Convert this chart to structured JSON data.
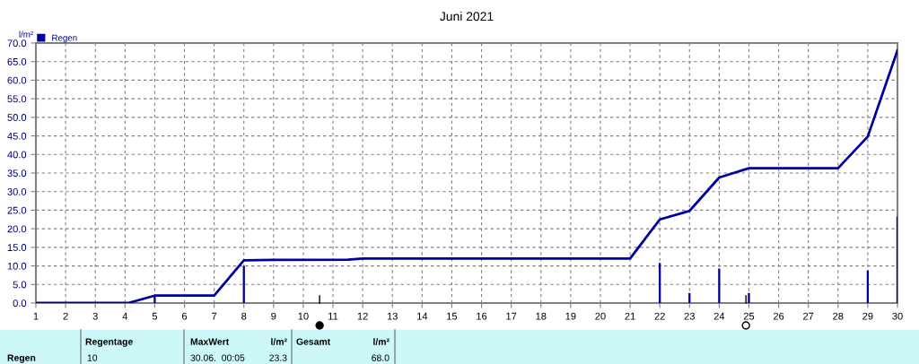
{
  "chart_data": {
    "type": "line",
    "title": "Juni 2021",
    "ylabel": "l/m²",
    "series": [
      {
        "type": "bar",
        "name": "Regen",
        "color": "#0000a0",
        "x": [
          5,
          8,
          22,
          23,
          24,
          25,
          29,
          30
        ],
        "values": [
          1.9,
          10.0,
          10.8,
          2.7,
          9.3,
          2.7,
          8.8,
          23.3
        ]
      },
      {
        "color": "#0000a0",
        "x": [
          1,
          4.1,
          5,
          7,
          8,
          9,
          11.5,
          12,
          21,
          22,
          23,
          24,
          25,
          28,
          29,
          30
        ],
        "values": [
          0,
          0,
          2.0,
          2.0,
          11.5,
          11.6,
          11.7,
          12.0,
          12.0,
          22.5,
          24.8,
          33.8,
          36.3,
          36.3,
          44.8,
          68.0
        ]
      }
    ],
    "xlim": [
      1,
      30
    ],
    "xticks": [
      1,
      2,
      3,
      4,
      5,
      6,
      7,
      8,
      9,
      10,
      11,
      12,
      13,
      14,
      15,
      16,
      17,
      18,
      19,
      20,
      21,
      22,
      23,
      24,
      25,
      26,
      27,
      28,
      29,
      30
    ],
    "ylim": [
      0,
      70
    ],
    "yticks": [
      {
        "value": 0,
        "label": "0.0"
      },
      {
        "value": 5,
        "label": "5.0"
      },
      {
        "value": 10,
        "label": "10.0"
      },
      {
        "value": 15,
        "label": "15.0"
      },
      {
        "value": 20,
        "label": "20.0"
      },
      {
        "value": 25,
        "label": "25.0"
      },
      {
        "value": 30,
        "label": "30.0"
      },
      {
        "value": 35,
        "label": "35.0"
      },
      {
        "value": 40,
        "label": "40.0"
      },
      {
        "value": 45,
        "label": "45.0"
      },
      {
        "value": 50,
        "label": "50.0"
      },
      {
        "value": 55,
        "label": "55.0"
      },
      {
        "value": 60,
        "label": "60.0"
      },
      {
        "value": 65,
        "label": "65.0"
      },
      {
        "value": 70,
        "label": "70.0"
      }
    ],
    "grid": true,
    "legend": "top left",
    "line_style": "solid",
    "marker": "none",
    "annotations": [
      "Regen",
      "Regentage",
      "10",
      "MaxWert",
      "l/m²",
      "30.06.  00:05",
      "23.3",
      "Gesamt",
      "l/m²",
      "68.0"
    ]
  }
}
